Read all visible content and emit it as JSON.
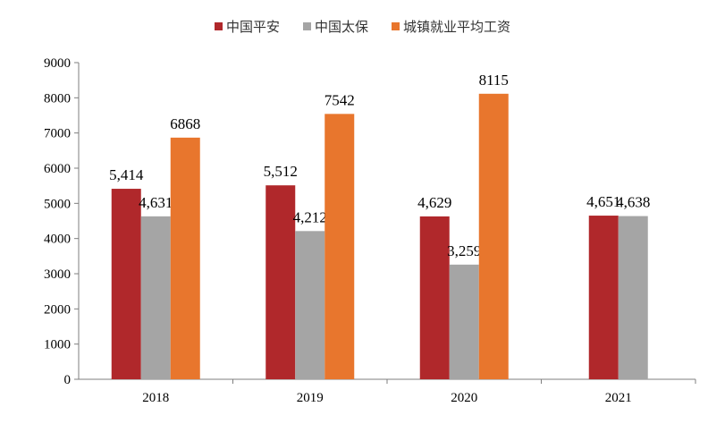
{
  "chart_data": {
    "type": "bar",
    "title": "",
    "xlabel": "",
    "ylabel": "",
    "categories": [
      "2018",
      "2019",
      "2020",
      "2021"
    ],
    "ylim": [
      0,
      9000
    ],
    "yticks": [
      "0",
      "1000",
      "2000",
      "3000",
      "4000",
      "5000",
      "6000",
      "7000",
      "8000",
      "9000"
    ],
    "grid": false,
    "legend_position": "top",
    "series": [
      {
        "name": "中国平安",
        "color": "#b0282b",
        "values": [
          5414,
          5512,
          4629,
          4651
        ],
        "labels": [
          "5,414",
          "5,512",
          "4,629",
          "4,651"
        ]
      },
      {
        "name": "中国太保",
        "color": "#a5a5a5",
        "values": [
          4631,
          4212,
          3259,
          4638
        ],
        "labels": [
          "4,631",
          "4,212",
          "3,259",
          "4,638"
        ]
      },
      {
        "name": "城镇就业平均工资",
        "color": "#e8762d",
        "values": [
          6868,
          7542,
          8115,
          null
        ],
        "labels": [
          "6868",
          "7542",
          "8115",
          ""
        ]
      }
    ]
  }
}
